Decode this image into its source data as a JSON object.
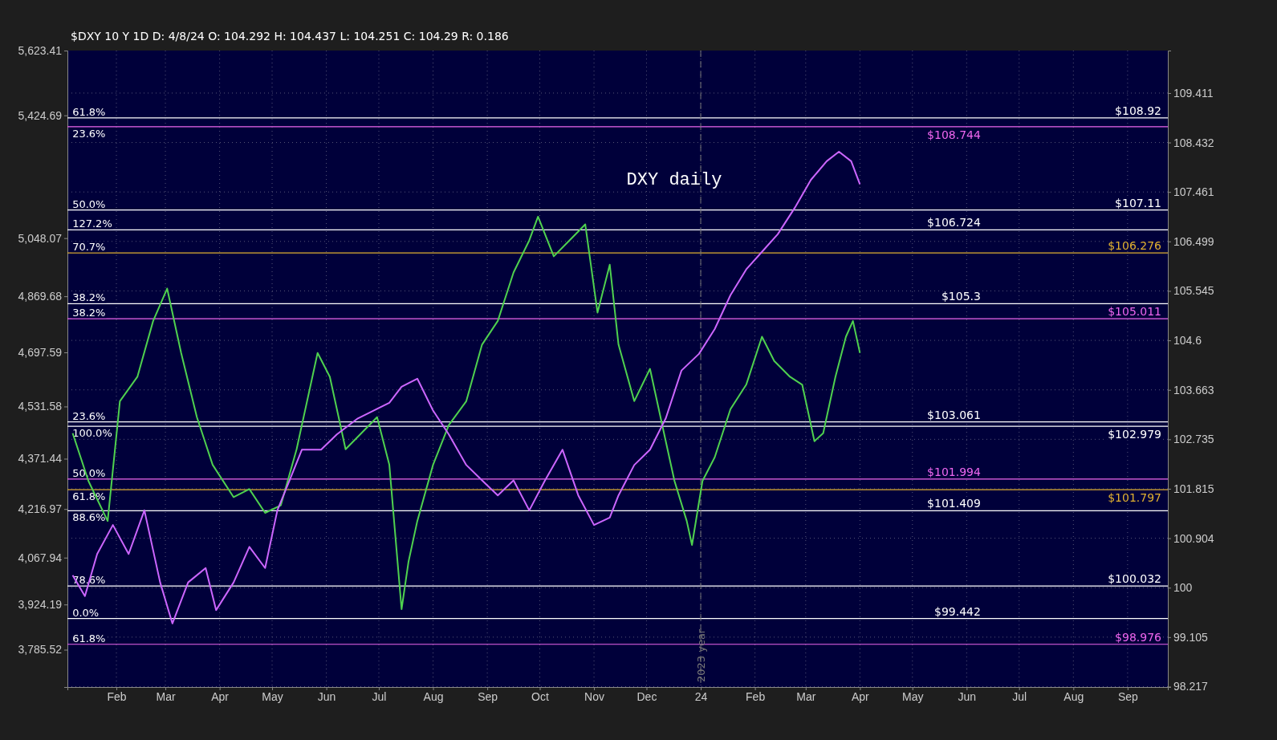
{
  "chart_data": {
    "type": "line",
    "title": "DXY daily",
    "subtitle": "$DXY 10 Y 1D   D: 4/8/24   O: 104.292   H: 104.437   L: 104.251   C: 104.29   R: 0.186",
    "log": "y",
    "grid": true,
    "xlim": [
      "2023-01-04",
      "2024-09-24"
    ],
    "xticks": [
      {
        "value": "2023-02-01",
        "label": "Feb"
      },
      {
        "value": "2023-03-01",
        "label": "Mar"
      },
      {
        "value": "2023-04-01",
        "label": "Apr"
      },
      {
        "value": "2023-05-01",
        "label": "May"
      },
      {
        "value": "2023-06-01",
        "label": "Jun"
      },
      {
        "value": "2023-07-01",
        "label": "Jul"
      },
      {
        "value": "2023-08-01",
        "label": "Aug"
      },
      {
        "value": "2023-09-01",
        "label": "Sep"
      },
      {
        "value": "2023-10-01",
        "label": "Oct"
      },
      {
        "value": "2023-11-01",
        "label": "Nov"
      },
      {
        "value": "2023-12-01",
        "label": "Dec"
      },
      {
        "value": "2024-01-01",
        "label": "24"
      },
      {
        "value": "2024-02-01",
        "label": "Feb"
      },
      {
        "value": "2024-03-01",
        "label": "Mar"
      },
      {
        "value": "2024-04-01",
        "label": "Apr"
      },
      {
        "value": "2024-05-01",
        "label": "May"
      },
      {
        "value": "2024-06-01",
        "label": "Jun"
      },
      {
        "value": "2024-07-01",
        "label": "Jul"
      },
      {
        "value": "2024-08-01",
        "label": "Aug"
      },
      {
        "value": "2024-09-01",
        "label": "Sep"
      }
    ],
    "ylim": [
      98.21,
      110.26
    ],
    "yticks": [
      98.217,
      99.105,
      100,
      100.904,
      101.815,
      102.735,
      103.663,
      104.6,
      105.545,
      106.499,
      107.461,
      108.432,
      109.411
    ],
    "y2lim": [
      3671,
      5623.41
    ],
    "y2ticks": [
      {
        "value": 3785.52,
        "label": "3,785.52"
      },
      {
        "value": 3924.19,
        "label": "3,924.19"
      },
      {
        "value": 4067.94,
        "label": "4,067.94"
      },
      {
        "value": 4216.97,
        "label": "4,216.97"
      },
      {
        "value": 4371.44,
        "label": "4,371.44"
      },
      {
        "value": 4531.58,
        "label": "4,531.58"
      },
      {
        "value": 4697.59,
        "label": "4,697.59"
      },
      {
        "value": 4869.68,
        "label": "4,869.68"
      },
      {
        "value": 5048.07,
        "label": "5,048.07"
      },
      {
        "value": 5424.69,
        "label": "5,424.69"
      },
      {
        "value": 5623.41,
        "label": "5,623.41"
      }
    ],
    "series": [
      {
        "color": "#4fd14f",
        "x": [
          "2023-01-07",
          "2023-01-16",
          "2023-01-27",
          "2023-02-03",
          "2023-02-13",
          "2023-02-22",
          "2023-03-02",
          "2023-03-10",
          "2023-03-19",
          "2023-03-28",
          "2023-04-09",
          "2023-04-18",
          "2023-04-27",
          "2023-05-06",
          "2023-05-15",
          "2023-05-27",
          "2023-06-03",
          "2023-06-12",
          "2023-06-21",
          "2023-06-30",
          "2023-07-07",
          "2023-07-14",
          "2023-07-18",
          "2023-07-23",
          "2023-08-01",
          "2023-08-10",
          "2023-08-20",
          "2023-08-29",
          "2023-09-07",
          "2023-09-16",
          "2023-09-25",
          "2023-09-30",
          "2023-10-09",
          "2023-10-18",
          "2023-10-27",
          "2023-11-03",
          "2023-11-10",
          "2023-11-15",
          "2023-11-24",
          "2023-12-03",
          "2023-12-10",
          "2023-12-17",
          "2023-12-24",
          "2023-12-27",
          "2024-01-02",
          "2024-01-09",
          "2024-01-18",
          "2024-01-27",
          "2024-02-05",
          "2024-02-12",
          "2024-02-21",
          "2024-02-28",
          "2024-03-06",
          "2024-03-11",
          "2024-03-18",
          "2024-03-24",
          "2024-03-28",
          "2024-04-01"
        ],
        "values": [
          102.85,
          101.96,
          101.22,
          103.45,
          103.91,
          104.97,
          105.59,
          104.36,
          103.15,
          102.26,
          101.66,
          101.81,
          101.37,
          101.51,
          102.55,
          104.36,
          103.91,
          102.55,
          102.85,
          103.15,
          102.26,
          99.61,
          100.48,
          101.22,
          102.26,
          103.0,
          103.45,
          104.52,
          104.97,
          105.9,
          106.52,
          106.98,
          106.21,
          106.52,
          106.83,
          105.13,
          106.05,
          104.52,
          103.45,
          104.06,
          103.0,
          101.96,
          101.22,
          100.78,
          101.96,
          102.4,
          103.3,
          103.76,
          104.67,
          104.21,
          103.91,
          103.76,
          102.7,
          102.85,
          103.91,
          104.67,
          104.97,
          104.36
        ]
      },
      {
        "color": "#cc66ff",
        "axis": "y2",
        "x": [
          "2023-01-07",
          "2023-01-14",
          "2023-01-21",
          "2023-01-30",
          "2023-02-08",
          "2023-02-17",
          "2023-02-26",
          "2023-03-05",
          "2023-03-14",
          "2023-03-24",
          "2023-03-30",
          "2023-04-09",
          "2023-04-18",
          "2023-04-27",
          "2023-05-04",
          "2023-05-11",
          "2023-05-18",
          "2023-05-29",
          "2023-06-07",
          "2023-06-19",
          "2023-06-28",
          "2023-07-07",
          "2023-07-14",
          "2023-07-23",
          "2023-08-01",
          "2023-08-10",
          "2023-08-20",
          "2023-08-29",
          "2023-09-07",
          "2023-09-16",
          "2023-09-25",
          "2023-10-04",
          "2023-10-14",
          "2023-10-23",
          "2023-11-01",
          "2023-11-10",
          "2023-11-15",
          "2023-11-24",
          "2023-12-03",
          "2023-12-12",
          "2023-12-21",
          "2023-12-31",
          "2024-01-09",
          "2024-01-18",
          "2024-01-27",
          "2024-02-05",
          "2024-02-14",
          "2024-02-24",
          "2024-03-04",
          "2024-03-13",
          "2024-03-20",
          "2024-03-27",
          "2024-04-01"
        ],
        "values": [
          4014,
          3950,
          4079,
          4168,
          4079,
          4213,
          3992,
          3866,
          3992,
          4036,
          3907,
          3992,
          4101,
          4036,
          4213,
          4305,
          4399,
          4399,
          4446,
          4495,
          4519,
          4543,
          4592,
          4617,
          4519,
          4446,
          4352,
          4305,
          4259,
          4305,
          4213,
          4305,
          4399,
          4259,
          4168,
          4191,
          4259,
          4352,
          4399,
          4495,
          4642,
          4693,
          4769,
          4873,
          4952,
          5006,
          5060,
          5143,
          5227,
          5284,
          5313,
          5284,
          5213
        ]
      }
    ],
    "ref_lines": [
      {
        "axis": "y",
        "value": 108.92,
        "label": "$108.92",
        "color": "#ffffff"
      },
      {
        "axis": "y",
        "value": 108.744,
        "label": "$108.744",
        "color": "#ee66ee"
      },
      {
        "axis": "y",
        "value": 107.11,
        "label": "$107.11",
        "color": "#ffffff"
      },
      {
        "axis": "y",
        "value": 106.724,
        "label": "$106.724",
        "color": "#ffffff"
      },
      {
        "axis": "y",
        "value": 106.276,
        "label": "$106.276",
        "color": "#e0b030"
      },
      {
        "axis": "y",
        "value": 105.3,
        "label": "$105.3",
        "color": "#ffffff"
      },
      {
        "axis": "y",
        "value": 105.011,
        "label": "$105.011",
        "color": "#ee66ee"
      },
      {
        "axis": "y",
        "value": 103.061,
        "label": "$103.061",
        "color": "#ffffff"
      },
      {
        "axis": "y",
        "value": 102.979,
        "label": "$102.979",
        "color": "#ffffff"
      },
      {
        "axis": "y",
        "value": 101.994,
        "label": "$101.994",
        "color": "#ee66ee"
      },
      {
        "axis": "y",
        "value": 101.797,
        "label": "$101.797",
        "color": "#e0b030"
      },
      {
        "axis": "y",
        "value": 101.409,
        "label": "$101.409",
        "color": "#ffffff"
      },
      {
        "axis": "y",
        "value": 100.032,
        "label": "$100.032",
        "color": "#ffffff"
      },
      {
        "axis": "y",
        "value": 99.442,
        "label": "$99.442",
        "color": "#ffffff"
      },
      {
        "axis": "y",
        "value": 98.976,
        "label": "$98.976",
        "color": "#ee66ee"
      },
      {
        "axis": "x",
        "value": "2024-01-01",
        "label": "2023 year",
        "color": "#777777",
        "line_style": "dashed"
      }
    ],
    "annotations": [
      {
        "text": "61.8%",
        "x": "2023-01-05",
        "y": 108.92
      },
      {
        "text": "23.6%",
        "x": "2023-01-05",
        "y": 108.744
      },
      {
        "text": "50.0%",
        "x": "2023-01-05",
        "y": 107.11
      },
      {
        "text": "127.2%",
        "x": "2023-01-05",
        "y": 106.724
      },
      {
        "text": "70.7%",
        "x": "2023-01-05",
        "y": 106.276
      },
      {
        "text": "38.2%",
        "x": "2023-01-05",
        "y": 105.3
      },
      {
        "text": "38.2%",
        "x": "2023-01-05",
        "y": 105.011
      },
      {
        "text": "23.6%",
        "x": "2023-01-05",
        "y": 103.061
      },
      {
        "text": "100.0%",
        "x": "2023-01-05",
        "y": 102.979
      },
      {
        "text": "50.0%",
        "x": "2023-01-05",
        "y": 101.994
      },
      {
        "text": "61.8%",
        "x": "2023-01-05",
        "y": 101.797
      },
      {
        "text": "88.6%",
        "x": "2023-01-05",
        "y": 101.409
      },
      {
        "text": "78.6%",
        "x": "2023-01-05",
        "y": 100.032
      },
      {
        "text": "0.0%",
        "x": "2023-01-05",
        "y": 99.442
      },
      {
        "text": "61.8%",
        "x": "2023-01-05",
        "y": 98.976
      }
    ]
  }
}
